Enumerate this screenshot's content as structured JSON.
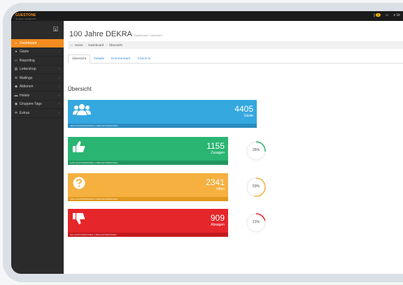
{
  "app": {
    "logo": "GUESTONE",
    "logo_sub": "the guest management",
    "top_right": {
      "badge": "5",
      "user": "Ur"
    }
  },
  "sidebar": {
    "items": [
      {
        "label": "Dashboard",
        "icon": "home-icon",
        "glyph": "⌂",
        "active": true,
        "chevron": false
      },
      {
        "label": "Gäste",
        "icon": "user-icon",
        "glyph": "●",
        "active": false,
        "chevron": true
      },
      {
        "label": "Reporting",
        "icon": "document-icon",
        "glyph": "▭",
        "active": false,
        "chevron": false
      },
      {
        "label": "Lettershop",
        "icon": "print-icon",
        "glyph": "▤",
        "active": false,
        "chevron": true
      },
      {
        "label": "Mailings",
        "icon": "envelope-icon",
        "glyph": "✉",
        "active": false,
        "chevron": true
      },
      {
        "label": "Aktionen",
        "icon": "tag-icon",
        "glyph": "◆",
        "active": false,
        "chevron": true
      },
      {
        "label": "Hotels",
        "icon": "bed-icon",
        "glyph": "▬",
        "active": false,
        "chevron": true
      },
      {
        "label": "Gruppen-Tags",
        "icon": "group-icon",
        "glyph": "◉",
        "active": false,
        "chevron": true
      },
      {
        "label": "Extras",
        "icon": "gears-icon",
        "glyph": "✲",
        "active": false,
        "chevron": true
      }
    ]
  },
  "page": {
    "title": "100 Jahre DEKRA",
    "subtitle": "Dashboard / Übersicht"
  },
  "breadcrumb": {
    "home": "Home",
    "dashboard": "Dashboard",
    "current": "Übersicht"
  },
  "tabs": [
    {
      "label": "Übersicht",
      "active": true
    },
    {
      "label": "Details",
      "active": false
    },
    {
      "label": "Kommentare",
      "active": false
    },
    {
      "label": "Check-in",
      "active": false
    }
  ],
  "section_title": "Übersicht",
  "cards": {
    "guests": {
      "value": "4405",
      "label": "Gäste",
      "footer": "4405 HAUPTPERSONEN, 0 BEGLEITPERSONEN",
      "icon": "users-icon",
      "color": "#35a8e0"
    },
    "accepted": {
      "value": "1155",
      "label": "Zusagen",
      "footer": "1155 HAUPTPERSONEN, 0 BEGLEITPERSONEN",
      "icon": "thumbs-up-icon",
      "color": "#2ab573",
      "percent": 26
    },
    "open": {
      "value": "2341",
      "label": "Offen",
      "footer": "2341 HAUPTPERSONEN, 0 BEGLEITPERSONEN",
      "icon": "question-icon",
      "color": "#f5b040",
      "percent": 53
    },
    "declined": {
      "value": "909",
      "label": "Absagen",
      "footer": "909 HAUPTPERSONEN, 0 BEGLEITPERSONEN",
      "icon": "thumbs-down-icon",
      "color": "#e5262a",
      "percent": 21
    }
  },
  "percent_labels": {
    "accepted": "26%",
    "open": "53%",
    "declined": "21%"
  }
}
